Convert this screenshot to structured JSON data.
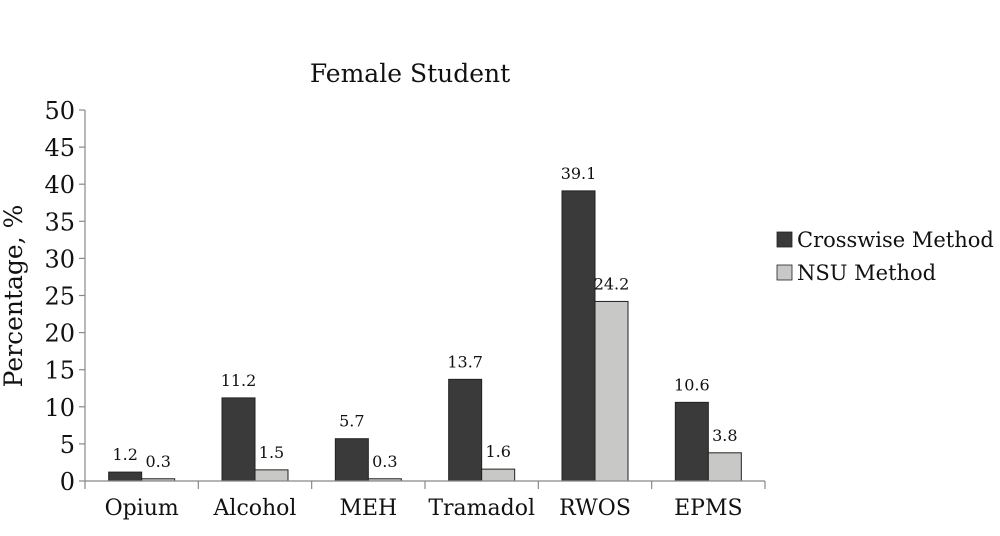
{
  "chart_data": {
    "type": "bar",
    "title": "Female Student",
    "ylabel": "Percentage, %",
    "xlabel": "",
    "ylim": [
      0,
      50
    ],
    "yticks": [
      0,
      5,
      10,
      15,
      20,
      25,
      30,
      35,
      40,
      45,
      50
    ],
    "categories": [
      "Opium",
      "Alcohol",
      "MEH",
      "Tramadol",
      "RWOS",
      "EPMS"
    ],
    "series": [
      {
        "name": "Crosswise Method",
        "color": "#3a3a3a",
        "values": [
          1.2,
          11.2,
          5.7,
          13.7,
          39.1,
          10.6
        ]
      },
      {
        "name": "NSU Method",
        "color": "#c8c9c7",
        "values": [
          0.3,
          1.5,
          0.3,
          1.6,
          24.2,
          3.8
        ]
      }
    ],
    "legend_position": "right",
    "grid": false
  }
}
